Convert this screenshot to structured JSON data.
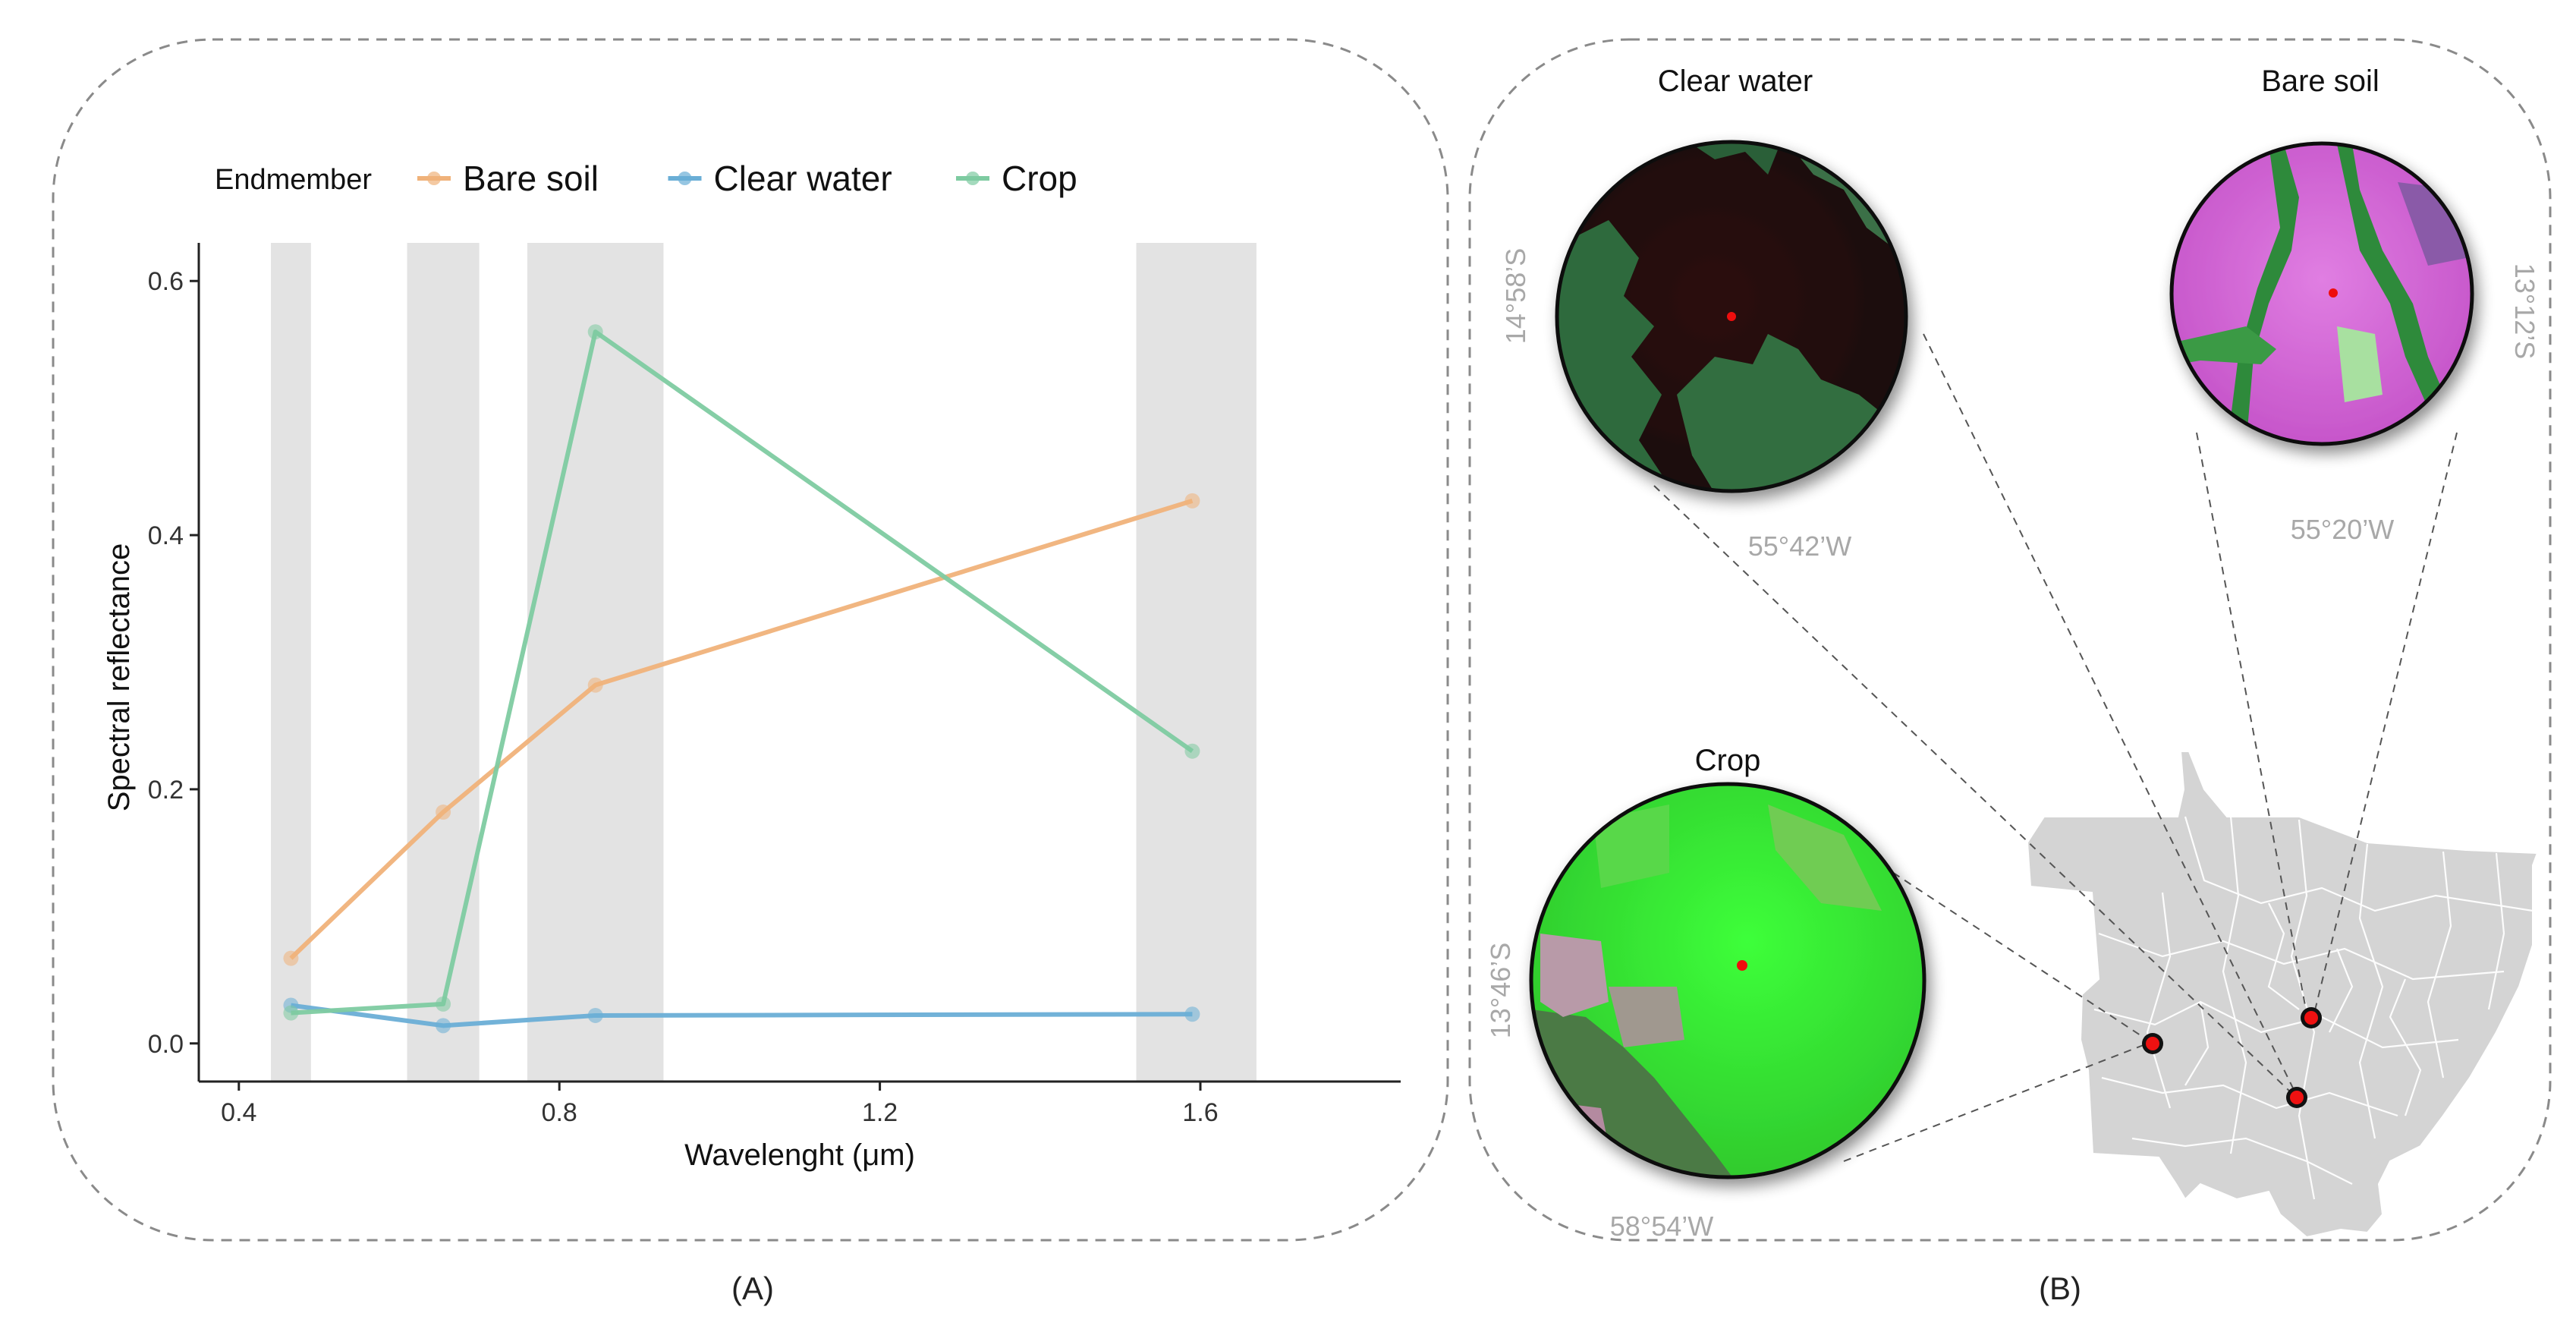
{
  "panels": {
    "a_label": "(A)",
    "b_label": "(B)"
  },
  "chart_data": {
    "type": "line",
    "xlabel": "Wavelenght (μm)",
    "ylabel": "Spectral reflectance",
    "xlim": [
      0.35,
      1.85
    ],
    "ylim": [
      -0.03,
      0.63
    ],
    "xticks": [
      "0.4",
      "0.8",
      "1.2",
      "1.6"
    ],
    "yticks": [
      "0.0",
      "0.2",
      "0.4",
      "0.6"
    ],
    "grid": false,
    "legend": {
      "title": "Endmember",
      "position": "top"
    },
    "bands": [
      [
        0.44,
        0.49
      ],
      [
        0.61,
        0.7
      ],
      [
        0.76,
        0.93
      ],
      [
        1.52,
        1.67
      ]
    ],
    "x": [
      0.465,
      0.655,
      0.845,
      1.59
    ],
    "series": [
      {
        "name": "Bare soil",
        "color": "#f0b27a",
        "values": [
          0.067,
          0.182,
          0.282,
          0.427
        ]
      },
      {
        "name": "Clear water",
        "color": "#6aaed6",
        "values": [
          0.03,
          0.014,
          0.022,
          0.023
        ]
      },
      {
        "name": "Crop",
        "color": "#7ecba1",
        "values": [
          0.024,
          0.031,
          0.56,
          0.23
        ]
      }
    ]
  },
  "map": {
    "insets": [
      {
        "title": "Clear water",
        "lat": "14°58’S",
        "lon": "55°42’W"
      },
      {
        "title": "Bare soil",
        "lat": "13°12’S",
        "lon": "55°20’W"
      },
      {
        "title": "Crop",
        "lat": "13°46’S",
        "lon": "58°54’W"
      }
    ],
    "colors": {
      "state": "#d4d4d4",
      "border": "#ffffff",
      "water": "#2a1212",
      "soil": "#d86ad6",
      "crop": "#3ee83a",
      "marker": "#ee1111"
    }
  }
}
